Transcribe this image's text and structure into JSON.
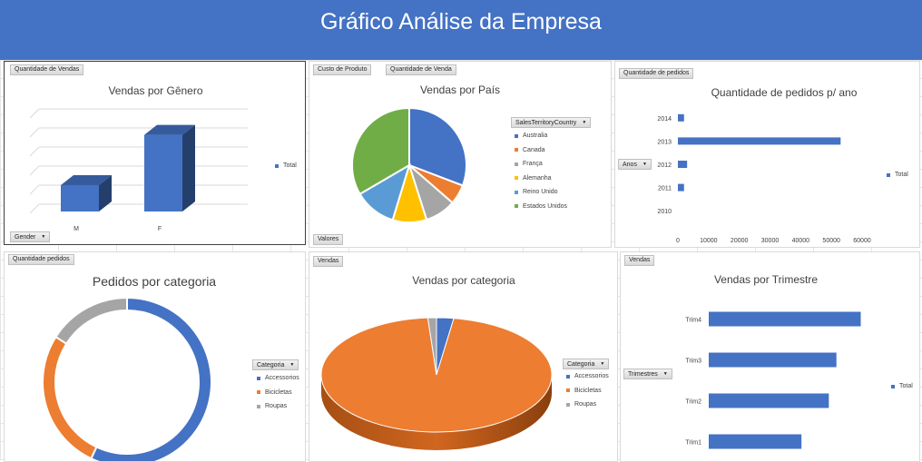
{
  "header": {
    "title": "Gráfico Análise da Empresa"
  },
  "colors": {
    "blue": "#4472c4",
    "orange": "#ed7d31",
    "gray": "#a5a5a5",
    "yellow": "#ffc000",
    "lightblue": "#5b9bd5",
    "green": "#70ad47"
  },
  "panels": {
    "gender": {
      "field": "Quantidade de Vendas",
      "axis_button": "Gender"
    },
    "country": {
      "fields": [
        "Custo de Produto",
        "Quantidade de Venda"
      ],
      "values_button": "Valores",
      "legend_button": "SalesTerritoryCountry"
    },
    "orders_year": {
      "field": "Quantidade de pedidos",
      "axis_button": "Anos"
    },
    "orders_category": {
      "field": "Quantidade pedidos",
      "legend_button": "Categoria"
    },
    "sales_category": {
      "field": "Vendas",
      "legend_button": "Categoria"
    },
    "sales_quarter": {
      "field": "Vendas",
      "axis_button": "Trimestres"
    }
  },
  "chart_data": [
    {
      "id": "gender",
      "type": "bar",
      "title": "Vendas por Gênero",
      "categories": [
        "M",
        "F"
      ],
      "series": [
        {
          "name": "Total",
          "values": [
            32,
            93
          ]
        }
      ],
      "ylim": [
        0,
        130
      ],
      "legend": "right"
    },
    {
      "id": "country",
      "type": "pie",
      "title": "Vendas por País",
      "categories": [
        "Australia",
        "Canada",
        "França",
        "Alemanha",
        "Reino Unido",
        "Estados Unidos"
      ],
      "values": [
        30.8,
        5.6,
        8.7,
        9.6,
        11.9,
        33.4
      ],
      "legend": "right"
    },
    {
      "id": "orders_year",
      "type": "bar",
      "orientation": "horizontal",
      "title": "Quantidade de pedidos p/ ano",
      "categories": [
        "2014",
        "2013",
        "2012",
        "2011",
        "2010"
      ],
      "series": [
        {
          "name": "Total",
          "values": [
            2000,
            53000,
            3000,
            2000,
            0
          ]
        }
      ],
      "xlim": [
        0,
        60000
      ],
      "xticks": [
        0,
        10000,
        20000,
        30000,
        40000,
        50000,
        60000
      ],
      "legend": "right"
    },
    {
      "id": "orders_category",
      "type": "pie",
      "variant": "doughnut",
      "title": "Pedidos por categoria",
      "categories": [
        "Accessorios",
        "Bicicletas",
        "Roupas"
      ],
      "values": [
        57,
        27,
        16
      ],
      "legend": "right"
    },
    {
      "id": "sales_category",
      "type": "pie",
      "variant": "3d",
      "title": "Vendas por categoria",
      "categories": [
        "Accessorios",
        "Bicicletas",
        "Roupas"
      ],
      "values": [
        2.4,
        96.4,
        1.2
      ],
      "legend": "right"
    },
    {
      "id": "sales_quarter",
      "type": "bar",
      "orientation": "horizontal",
      "title": "Vendas por Trimestre",
      "categories": [
        "Trim4",
        "Trim3",
        "Trim2",
        "Trim1"
      ],
      "series": [
        {
          "name": "Total",
          "values": [
            100,
            84,
            79,
            61
          ]
        }
      ],
      "xlim": [
        0,
        120
      ],
      "legend": "right"
    }
  ]
}
